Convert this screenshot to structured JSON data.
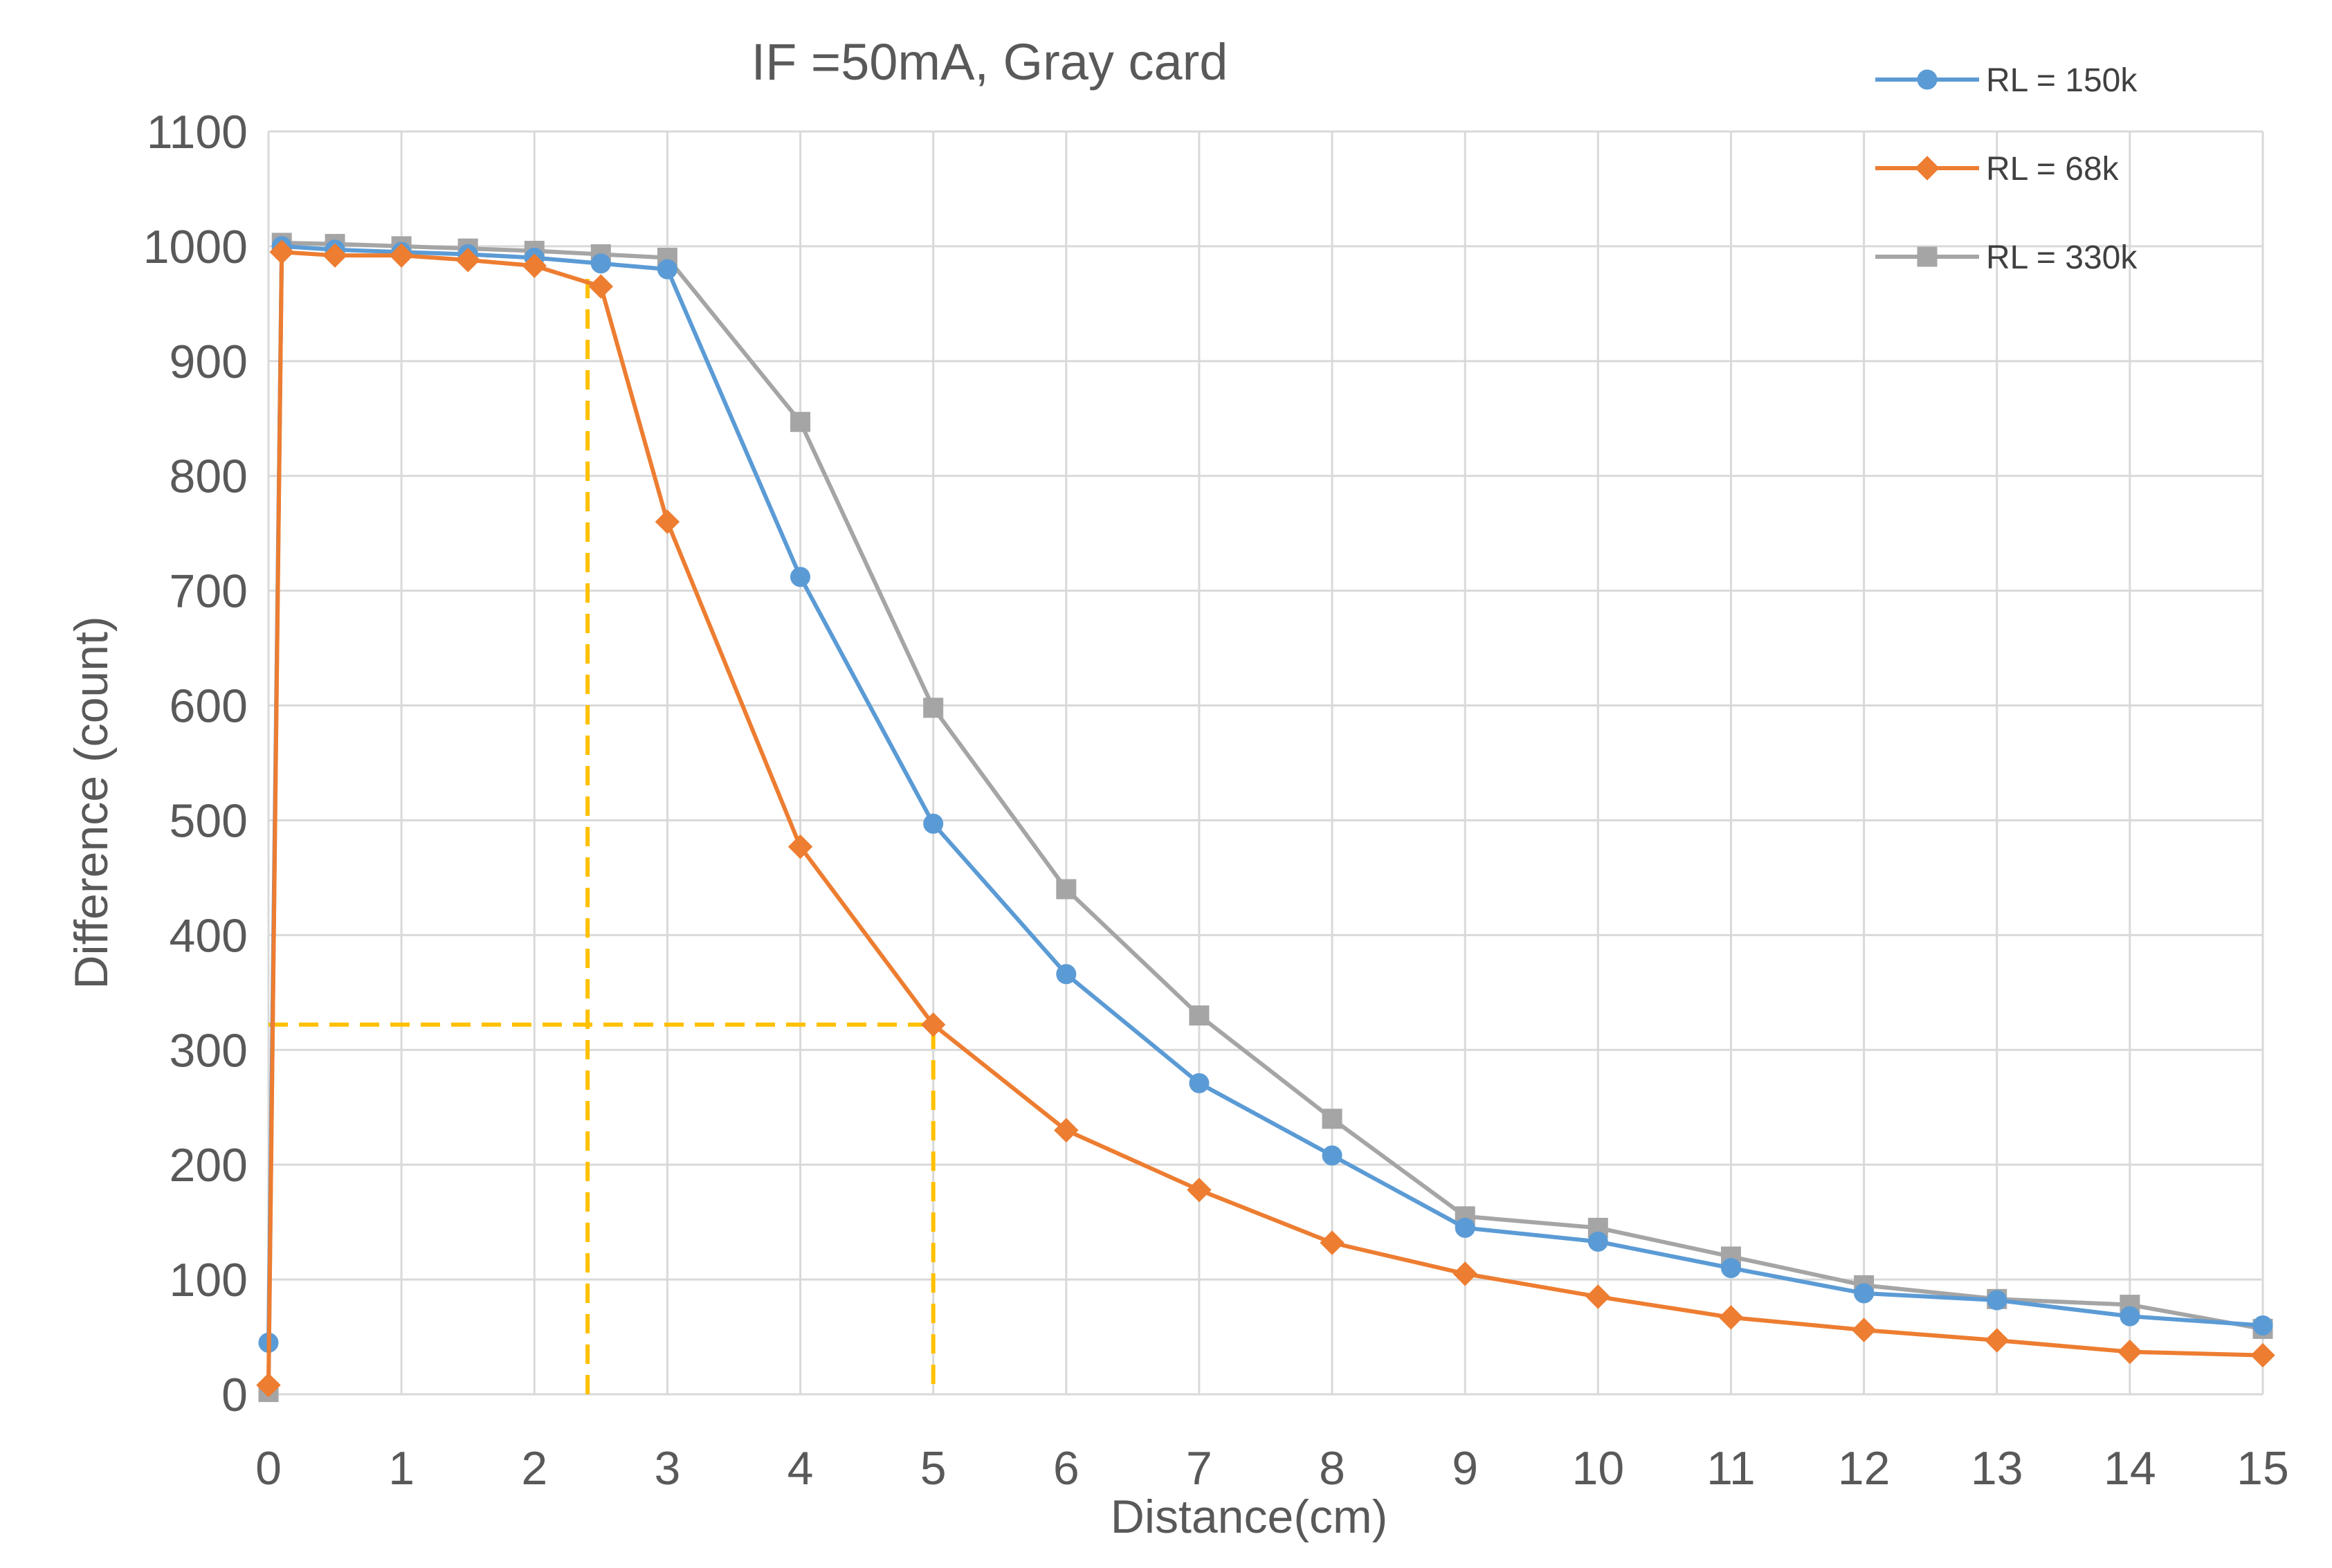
{
  "chart_data": {
    "type": "line",
    "title": "IF =50mA, Gray card",
    "xlabel": "Distance(cm)",
    "ylabel": "Difference (count)",
    "xlim": [
      0,
      15
    ],
    "ylim": [
      0,
      1100
    ],
    "xticks": [
      "0",
      "1",
      "2",
      "3",
      "4",
      "5",
      "6",
      "7",
      "8",
      "9",
      "10",
      "11",
      "12",
      "13",
      "14",
      "15"
    ],
    "yticks": [
      "0",
      "100",
      "200",
      "300",
      "400",
      "500",
      "600",
      "700",
      "800",
      "900",
      "1000",
      "1100"
    ],
    "grid": true,
    "legend_position": "top-right",
    "series": [
      {
        "name": "RL = 150k",
        "color": "#5B9BD5",
        "marker": "circle",
        "x": [
          0,
          0.1,
          0.5,
          1,
          1.5,
          2,
          2.5,
          3,
          4,
          5,
          6,
          7,
          8,
          9,
          10,
          11,
          12,
          13,
          14,
          15
        ],
        "y": [
          45,
          1000,
          997,
          995,
          993,
          990,
          985,
          980,
          712,
          497,
          366,
          271,
          208,
          145,
          133,
          110,
          88,
          82,
          68,
          60
        ]
      },
      {
        "name": "RL = 68k",
        "color": "#ED7D31",
        "marker": "diamond",
        "x": [
          0,
          0.1,
          0.5,
          1,
          1.5,
          2,
          2.5,
          3,
          4,
          5,
          6,
          7,
          8,
          9,
          10,
          11,
          12,
          13,
          14,
          15
        ],
        "y": [
          8,
          995,
          992,
          992,
          988,
          983,
          965,
          760,
          477,
          322,
          230,
          178,
          132,
          105,
          85,
          67,
          56,
          47,
          37,
          34
        ]
      },
      {
        "name": "RL = 330k",
        "color": "#A5A5A5",
        "marker": "square",
        "x": [
          0,
          0.1,
          0.5,
          1,
          1.5,
          2,
          2.5,
          3,
          4,
          5,
          6,
          7,
          8,
          9,
          10,
          11,
          12,
          13,
          14,
          15
        ],
        "y": [
          2,
          1003,
          1002,
          1000,
          998,
          996,
          993,
          990,
          847,
          598,
          440,
          330,
          240,
          155,
          145,
          120,
          95,
          83,
          78,
          57
        ]
      }
    ],
    "reference_lines": [
      {
        "color": "#FFC000",
        "style": "dashed",
        "points": [
          [
            2.4,
            0
          ],
          [
            2.4,
            980
          ]
        ]
      },
      {
        "color": "#FFC000",
        "style": "dashed",
        "points": [
          [
            0,
            322
          ],
          [
            5,
            322
          ],
          [
            5,
            0
          ]
        ]
      }
    ]
  }
}
